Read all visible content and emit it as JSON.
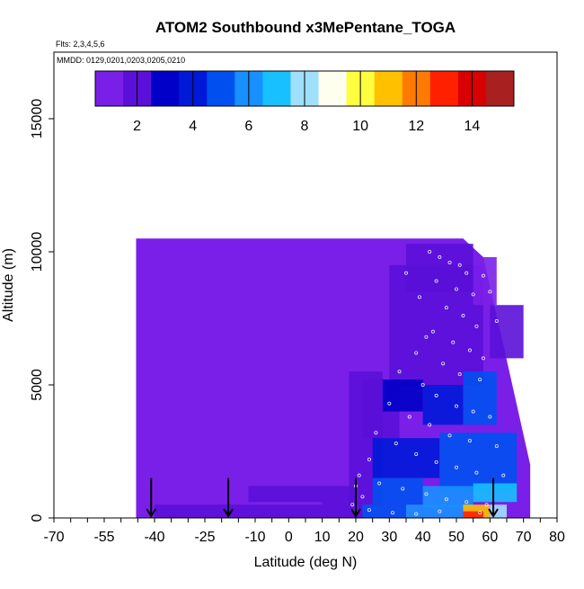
{
  "chart_data": {
    "type": "heatmap",
    "title": "ATOM2 Southbound x3MePentane_TOGA",
    "subtitle_flights": "Flts: 2,3,4,5,6",
    "subtitle_dates": "MMDD: 0129,0201,0203,0205,0210",
    "xlabel": "Latitude (deg N)",
    "ylabel": "Altitude (m)",
    "xlim": [
      -70,
      80
    ],
    "ylim": [
      0,
      17500
    ],
    "xticks": [
      -70,
      -55,
      -40,
      -25,
      -10,
      0,
      10,
      20,
      30,
      40,
      50,
      60,
      70,
      80
    ],
    "xtick_labels": [
      "-70",
      "-55",
      "-40",
      "-25",
      "-10",
      "0",
      "10",
      "20",
      "30",
      "40",
      "50",
      "60",
      "70",
      "80"
    ],
    "yticks": [
      0,
      5000,
      10000,
      15000
    ],
    "ytick_labels": [
      "0",
      "5000",
      "10000",
      "15000"
    ],
    "colorbar": {
      "range": [
        0.5,
        15.5
      ],
      "ticks": [
        2,
        4,
        6,
        8,
        10,
        12,
        14
      ],
      "tick_labels": [
        "2",
        "4",
        "6",
        "8",
        "10",
        "12",
        "14"
      ],
      "colors": [
        "#7a1fe8",
        "#5a10d8",
        "#0000c8",
        "#0018d8",
        "#0050f0",
        "#1890ff",
        "#18c0ff",
        "#a0e0ff",
        "#fffff0",
        "#ffff40",
        "#ffc000",
        "#ff7a00",
        "#ff2000",
        "#d80000",
        "#a82020"
      ]
    },
    "region": {
      "lat_min": -45.5,
      "lat_max": 72,
      "alt_min": 0,
      "alt_max": 10500,
      "background_value": 1.2
    },
    "cells": [
      {
        "lat": [
          -40,
          10
        ],
        "alt": [
          0,
          500
        ],
        "value": 1.8
      },
      {
        "lat": [
          10,
          22
        ],
        "alt": [
          0,
          600
        ],
        "value": 2.3
      },
      {
        "lat": [
          -12,
          20
        ],
        "alt": [
          600,
          1200
        ],
        "value": 1.6
      },
      {
        "lat": [
          18,
          28
        ],
        "alt": [
          500,
          5500
        ],
        "value": 2.2
      },
      {
        "lat": [
          22,
          33
        ],
        "alt": [
          3000,
          5200
        ],
        "value": 2.0
      },
      {
        "lat": [
          30,
          58
        ],
        "alt": [
          5000,
          9500
        ],
        "value": 2.0
      },
      {
        "lat": [
          35,
          55
        ],
        "alt": [
          8500,
          10300
        ],
        "value": 1.5
      },
      {
        "lat": [
          28,
          40
        ],
        "alt": [
          4000,
          5200
        ],
        "value": 3.2
      },
      {
        "lat": [
          40,
          52
        ],
        "alt": [
          3500,
          5000
        ],
        "value": 4.0
      },
      {
        "lat": [
          52,
          62
        ],
        "alt": [
          3500,
          5500
        ],
        "value": 5.0
      },
      {
        "lat": [
          25,
          45
        ],
        "alt": [
          1500,
          3000
        ],
        "value": 4.2
      },
      {
        "lat": [
          45,
          68
        ],
        "alt": [
          1000,
          3200
        ],
        "value": 5.2
      },
      {
        "lat": [
          25,
          40
        ],
        "alt": [
          500,
          1500
        ],
        "value": 4.8
      },
      {
        "lat": [
          40,
          55
        ],
        "alt": [
          400,
          1200
        ],
        "value": 6.3
      },
      {
        "lat": [
          55,
          68
        ],
        "alt": [
          600,
          1300
        ],
        "value": 7.0
      },
      {
        "lat": [
          22,
          35
        ],
        "alt": [
          0,
          500
        ],
        "value": 4.5
      },
      {
        "lat": [
          35,
          52
        ],
        "alt": [
          0,
          500
        ],
        "value": 6.0
      },
      {
        "lat": [
          52,
          60
        ],
        "alt": [
          0,
          500
        ],
        "value": 11.0
      },
      {
        "lat": [
          60,
          65
        ],
        "alt": [
          0,
          500
        ],
        "value": 8.0
      },
      {
        "lat": [
          52,
          58
        ],
        "alt": [
          0,
          250
        ],
        "value": 12.5
      },
      {
        "lat": [
          60,
          70
        ],
        "alt": [
          6000,
          8000
        ],
        "value": 1.8
      },
      {
        "lat": [
          55,
          62
        ],
        "alt": [
          8000,
          9800
        ],
        "value": 1.3
      }
    ],
    "sample_points": [
      {
        "lat": 42,
        "alt": 10000
      },
      {
        "lat": 45,
        "alt": 9800
      },
      {
        "lat": 48,
        "alt": 9600
      },
      {
        "lat": 51,
        "alt": 9500
      },
      {
        "lat": 53,
        "alt": 9200
      },
      {
        "lat": 44,
        "alt": 8900
      },
      {
        "lat": 50,
        "alt": 8600
      },
      {
        "lat": 55,
        "alt": 8400
      },
      {
        "lat": 47,
        "alt": 7900
      },
      {
        "lat": 52,
        "alt": 7600
      },
      {
        "lat": 56,
        "alt": 7200
      },
      {
        "lat": 43,
        "alt": 7000
      },
      {
        "lat": 49,
        "alt": 6600
      },
      {
        "lat": 54,
        "alt": 6300
      },
      {
        "lat": 58,
        "alt": 6000
      },
      {
        "lat": 38,
        "alt": 6200
      },
      {
        "lat": 46,
        "alt": 5800
      },
      {
        "lat": 51,
        "alt": 5400
      },
      {
        "lat": 57,
        "alt": 5200
      },
      {
        "lat": 33,
        "alt": 5500
      },
      {
        "lat": 40,
        "alt": 5000
      },
      {
        "lat": 44,
        "alt": 4600
      },
      {
        "lat": 50,
        "alt": 4200
      },
      {
        "lat": 55,
        "alt": 4000
      },
      {
        "lat": 60,
        "alt": 3800
      },
      {
        "lat": 30,
        "alt": 4300
      },
      {
        "lat": 36,
        "alt": 3800
      },
      {
        "lat": 42,
        "alt": 3500
      },
      {
        "lat": 48,
        "alt": 3100
      },
      {
        "lat": 54,
        "alt": 2900
      },
      {
        "lat": 62,
        "alt": 2700
      },
      {
        "lat": 26,
        "alt": 3200
      },
      {
        "lat": 32,
        "alt": 2800
      },
      {
        "lat": 38,
        "alt": 2400
      },
      {
        "lat": 44,
        "alt": 2100
      },
      {
        "lat": 50,
        "alt": 1900
      },
      {
        "lat": 56,
        "alt": 1700
      },
      {
        "lat": 64,
        "alt": 1600
      },
      {
        "lat": 24,
        "alt": 2200
      },
      {
        "lat": 21,
        "alt": 1600
      },
      {
        "lat": 27,
        "alt": 1300
      },
      {
        "lat": 34,
        "alt": 1100
      },
      {
        "lat": 41,
        "alt": 900
      },
      {
        "lat": 47,
        "alt": 700
      },
      {
        "lat": 53,
        "alt": 600
      },
      {
        "lat": 59,
        "alt": 500
      },
      {
        "lat": 22,
        "alt": 800
      },
      {
        "lat": 24,
        "alt": 300
      },
      {
        "lat": 31,
        "alt": 200
      },
      {
        "lat": 38,
        "alt": 150
      },
      {
        "lat": 45,
        "alt": 250
      },
      {
        "lat": 57,
        "alt": 200
      },
      {
        "lat": 35,
        "alt": 9200
      },
      {
        "lat": 58,
        "alt": 9100
      },
      {
        "lat": 60,
        "alt": 8500
      },
      {
        "lat": 62,
        "alt": 7400
      },
      {
        "lat": 19,
        "alt": 500
      },
      {
        "lat": 20,
        "alt": 1200
      },
      {
        "lat": 39,
        "alt": 8300
      },
      {
        "lat": 41,
        "alt": 6800
      }
    ],
    "arrows_lat": [
      -41,
      -18,
      20,
      61
    ]
  }
}
